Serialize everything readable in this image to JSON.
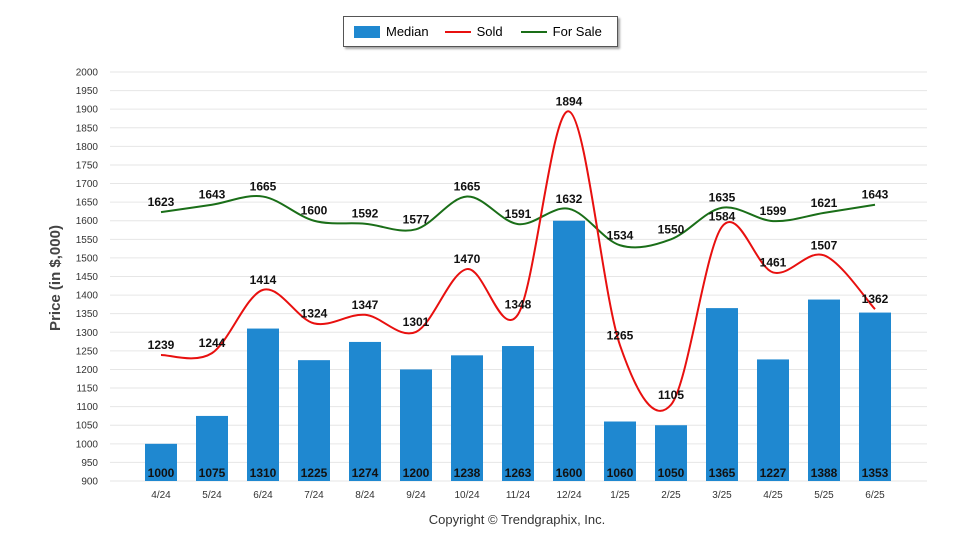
{
  "legend": {
    "median_label": "Median",
    "sold_label": "Sold",
    "forsale_label": "For Sale"
  },
  "footer": {
    "copyright": "Copyright © Trendgraphix, Inc."
  },
  "colors": {
    "median": "#1f88d0",
    "sold": "#e8100f",
    "forsale": "#1a6e18"
  },
  "chart_data": {
    "type": "bar",
    "ylabel": "Price (in $,000)",
    "ylim": [
      900,
      2000
    ],
    "ytick_step": 50,
    "grid": true,
    "legend_position": "top-center",
    "categories": [
      "4/24",
      "5/24",
      "6/24",
      "7/24",
      "8/24",
      "9/24",
      "10/24",
      "11/24",
      "12/24",
      "1/25",
      "2/25",
      "3/25",
      "4/25",
      "5/25",
      "6/25"
    ],
    "series": [
      {
        "name": "Median",
        "type": "bar",
        "values": [
          1000,
          1075,
          1310,
          1225,
          1274,
          1200,
          1238,
          1263,
          1600,
          1060,
          1050,
          1365,
          1227,
          1388,
          1353
        ]
      },
      {
        "name": "Sold",
        "type": "line",
        "values": [
          1239,
          1244,
          1414,
          1324,
          1347,
          1301,
          1470,
          1348,
          1894,
          1265,
          1105,
          1584,
          1461,
          1507,
          1362
        ]
      },
      {
        "name": "For Sale",
        "type": "line",
        "values": [
          1623,
          1643,
          1665,
          1600,
          1592,
          1577,
          1665,
          1591,
          1632,
          1534,
          1550,
          1635,
          1599,
          1621,
          1643
        ]
      }
    ]
  }
}
